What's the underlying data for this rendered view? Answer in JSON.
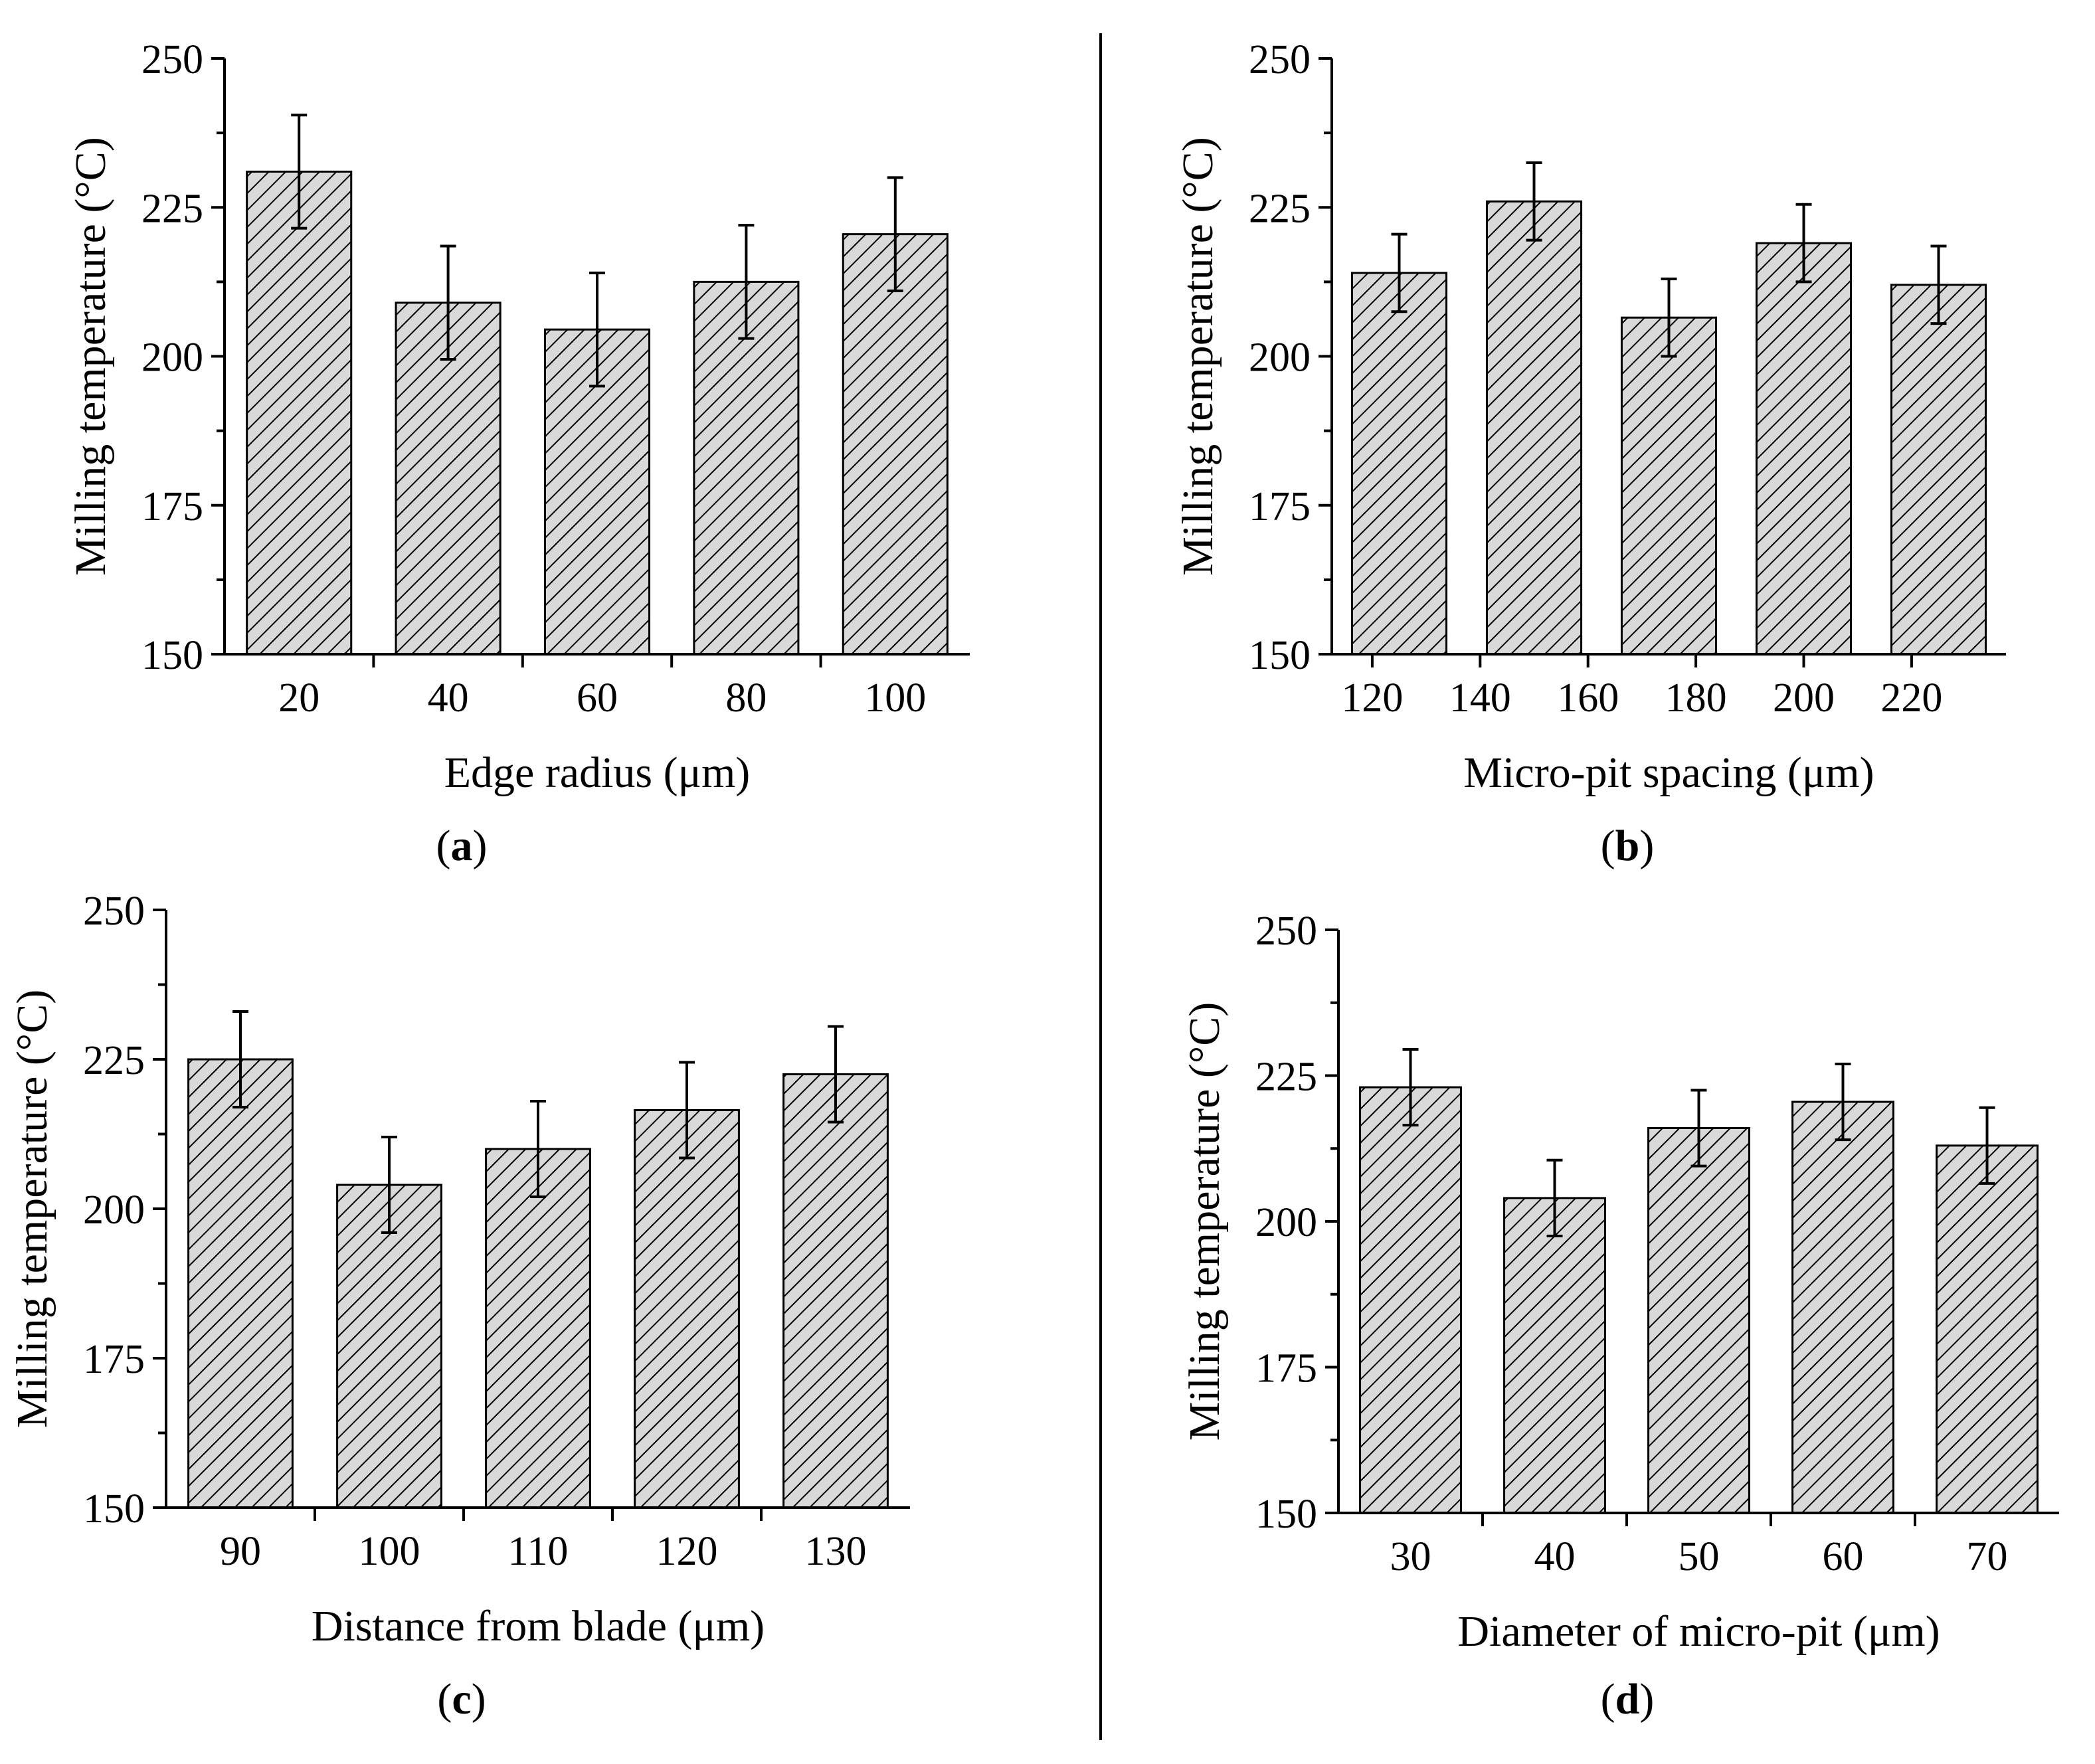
{
  "figure": {
    "colors": {
      "bar_fill": "#d9d9d9",
      "hatch": "#000000",
      "axis": "#000000"
    }
  },
  "chart_data": [
    {
      "type": "bar",
      "panel_label": "a",
      "title": "",
      "xlabel": "Edge radius (μm)",
      "ylabel": "Milling temperature (°C)",
      "categories": [
        "20",
        "40",
        "60",
        "80",
        "100"
      ],
      "values": [
        231,
        209,
        204.5,
        212.5,
        220.5
      ],
      "errors": [
        9.5,
        9.5,
        9.5,
        9.5,
        9.5
      ],
      "ylim": [
        150,
        250
      ],
      "yticks": [
        150,
        175,
        200,
        225,
        250
      ]
    },
    {
      "type": "bar",
      "panel_label": "b",
      "title": "",
      "xlabel": "Micro-pit spacing (μm)",
      "ylabel": "Milling temperature (°C)",
      "categories": [
        "125",
        "150",
        "175",
        "200",
        "225"
      ],
      "x_values": [
        125,
        150,
        175,
        200,
        225
      ],
      "xticks": [
        120,
        140,
        160,
        180,
        200,
        220
      ],
      "xlim": [
        112.5,
        237.5
      ],
      "values": [
        214,
        226,
        206.5,
        219,
        212
      ],
      "errors": [
        6.5,
        6.5,
        6.5,
        6.5,
        6.5
      ],
      "ylim": [
        150,
        250
      ],
      "yticks": [
        150,
        175,
        200,
        225,
        250
      ]
    },
    {
      "type": "bar",
      "panel_label": "c",
      "title": "",
      "xlabel": "Distance from blade (μm)",
      "ylabel": "Milling temperature (°C)",
      "categories": [
        "90",
        "100",
        "110",
        "120",
        "130"
      ],
      "values": [
        225,
        204,
        210,
        216.5,
        222.5
      ],
      "errors": [
        8,
        8,
        8,
        8,
        8
      ],
      "ylim": [
        150,
        250
      ],
      "yticks": [
        150,
        175,
        200,
        225,
        250
      ]
    },
    {
      "type": "bar",
      "panel_label": "d",
      "title": "",
      "xlabel": "Diameter of micro-pit (μm)",
      "ylabel": "Milling temperature (°C)",
      "categories": [
        "30",
        "40",
        "50",
        "60",
        "70"
      ],
      "values": [
        223,
        204,
        216,
        220.5,
        213
      ],
      "errors": [
        6.5,
        6.5,
        6.5,
        6.5,
        6.5
      ],
      "ylim": [
        150,
        250
      ],
      "yticks": [
        150,
        175,
        200,
        225,
        250
      ]
    }
  ]
}
